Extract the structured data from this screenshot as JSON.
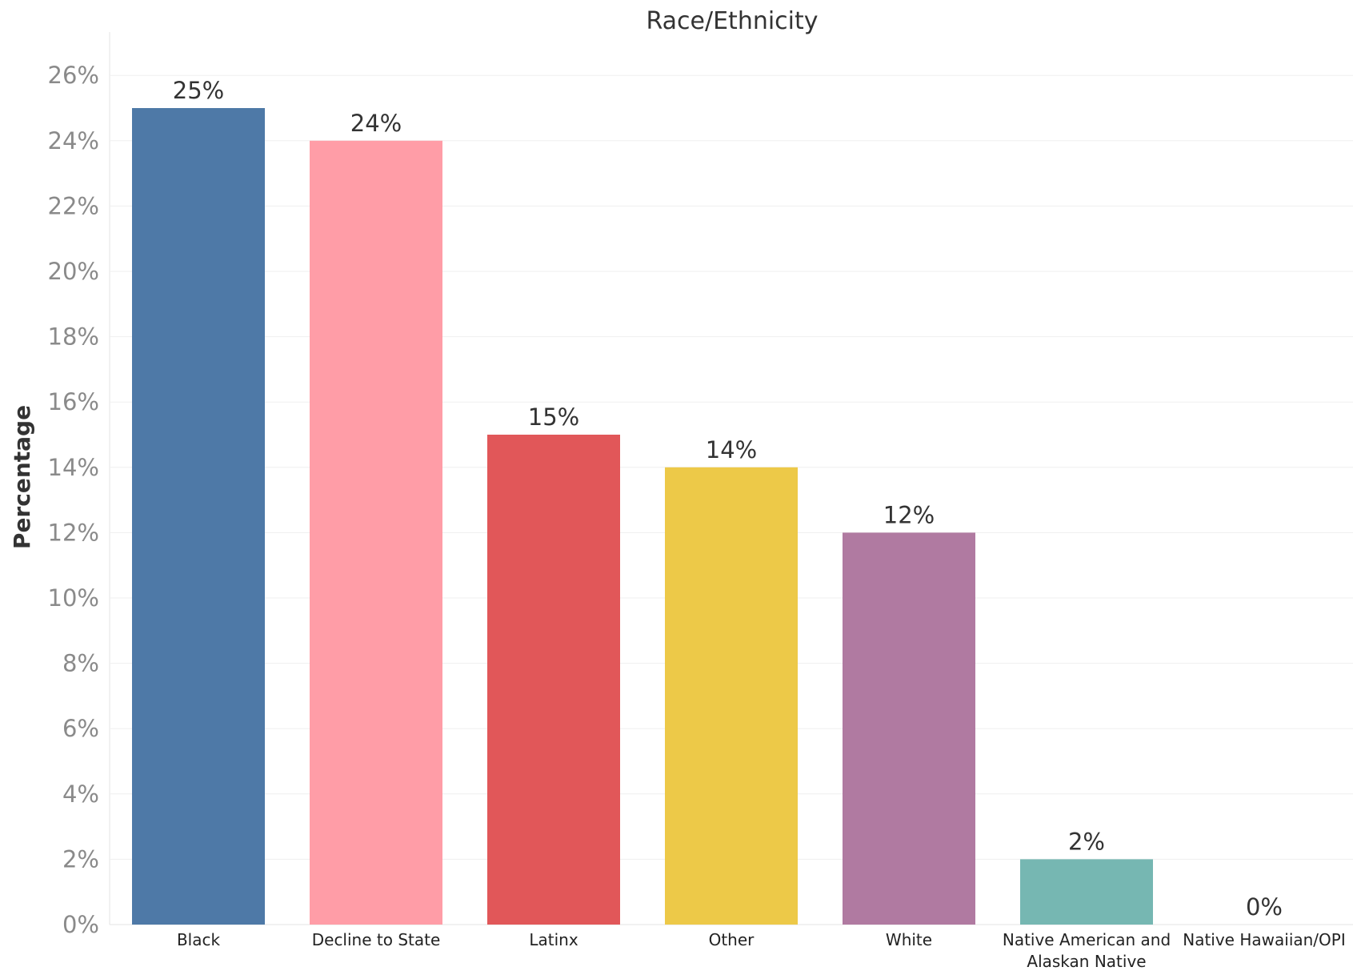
{
  "chart_data": {
    "type": "bar",
    "title": "Race/Ethnicity",
    "ylabel": "Percentage",
    "xlabel": "",
    "ylim": [
      0,
      26
    ],
    "yticks": [
      0,
      2,
      4,
      6,
      8,
      10,
      12,
      14,
      16,
      18,
      20,
      22,
      24,
      26
    ],
    "ytick_labels": [
      "0%",
      "2%",
      "4%",
      "6%",
      "8%",
      "10%",
      "12%",
      "14%",
      "16%",
      "18%",
      "20%",
      "22%",
      "24%",
      "26%"
    ],
    "grid": true,
    "legend": "none",
    "categories": [
      [
        "Black"
      ],
      [
        "Decline to State"
      ],
      [
        "Latinx"
      ],
      [
        "Other"
      ],
      [
        "White"
      ],
      [
        "Native American and",
        "Alaskan Native"
      ],
      [
        "Native Hawaiian/OPI"
      ]
    ],
    "values": [
      25,
      24,
      15,
      14,
      12,
      2,
      0
    ],
    "value_labels": [
      "25%",
      "24%",
      "15%",
      "14%",
      "12%",
      "2%",
      "0%"
    ],
    "colors": [
      "#4e79a7",
      "#ff9da7",
      "#e15759",
      "#edc948",
      "#b07aa1",
      "#76b7b2",
      "#9c755f"
    ]
  }
}
